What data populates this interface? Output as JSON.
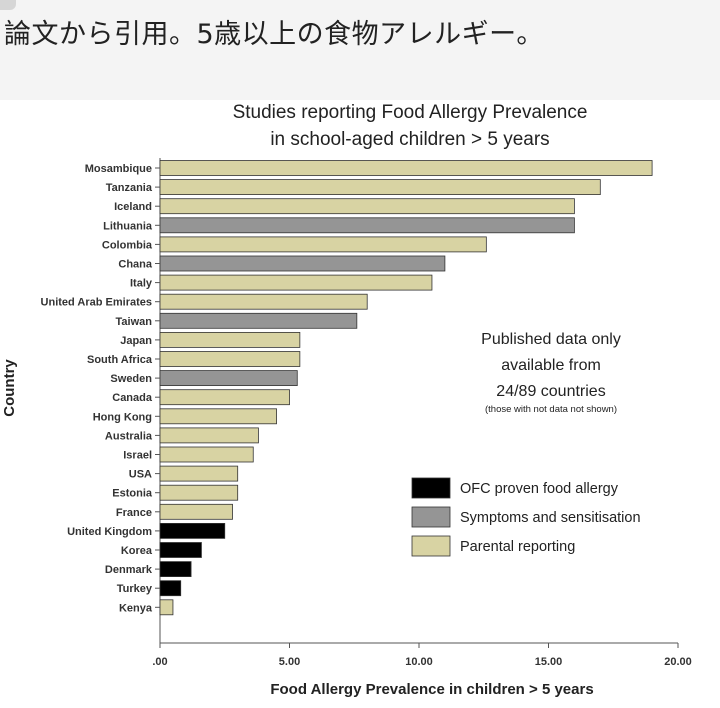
{
  "caption": "論文から引用。5歳以上の食物アレルギー。",
  "chart_data": {
    "type": "bar",
    "orientation": "horizontal",
    "title": "Studies reporting Food Allergy Prevalence in school-aged children > 5 years",
    "title_lines": [
      "Studies reporting Food Allergy Prevalence",
      "in school-aged children > 5 years"
    ],
    "xlabel": "Food Allergy Prevalence in children > 5 years",
    "ylabel": "Country",
    "xlim": [
      0,
      20
    ],
    "xticks": [
      0,
      5,
      10,
      15,
      20
    ],
    "xtick_labels": [
      ".00",
      "5.00",
      "10.00",
      "15.00",
      "20.00"
    ],
    "grid": false,
    "legend_position": "bottom-right",
    "colors": {
      "OFC proven food allergy": "#000000",
      "Symptoms and sensitisation": "#959595",
      "Parental reporting": "#d8d3a3"
    },
    "legend": [
      "OFC proven food allergy",
      "Symptoms and sensitisation",
      "Parental reporting"
    ],
    "annotation": {
      "lines": [
        "Published data only",
        "available from",
        "24/89 countries"
      ],
      "note": "(those with not data not shown)"
    },
    "bars": [
      {
        "country": "Mosambique",
        "value": 19.0,
        "category": "Parental reporting"
      },
      {
        "country": "Tanzania",
        "value": 17.0,
        "category": "Parental reporting"
      },
      {
        "country": "Iceland",
        "value": 16.0,
        "category": "Parental reporting"
      },
      {
        "country": "Lithuania",
        "value": 16.0,
        "category": "Symptoms and sensitisation"
      },
      {
        "country": "Colombia",
        "value": 12.6,
        "category": "Parental reporting"
      },
      {
        "country": "Chana",
        "value": 11.0,
        "category": "Symptoms and sensitisation"
      },
      {
        "country": "Italy",
        "value": 10.5,
        "category": "Parental reporting"
      },
      {
        "country": "United Arab Emirates",
        "value": 8.0,
        "category": "Parental reporting"
      },
      {
        "country": "Taiwan",
        "value": 7.6,
        "category": "Symptoms and sensitisation"
      },
      {
        "country": "Japan",
        "value": 5.4,
        "category": "Parental reporting"
      },
      {
        "country": "South Africa",
        "value": 5.4,
        "category": "Parental reporting"
      },
      {
        "country": "Sweden",
        "value": 5.3,
        "category": "Symptoms and sensitisation"
      },
      {
        "country": "Canada",
        "value": 5.0,
        "category": "Parental reporting"
      },
      {
        "country": "Hong Kong",
        "value": 4.5,
        "category": "Parental reporting"
      },
      {
        "country": "Australia",
        "value": 3.8,
        "category": "Parental reporting"
      },
      {
        "country": "Israel",
        "value": 3.6,
        "category": "Parental reporting"
      },
      {
        "country": "USA",
        "value": 3.0,
        "category": "Parental reporting"
      },
      {
        "country": "Estonia",
        "value": 3.0,
        "category": "Parental reporting"
      },
      {
        "country": "France",
        "value": 2.8,
        "category": "Parental reporting"
      },
      {
        "country": "United Kingdom",
        "value": 2.5,
        "category": "OFC proven food allergy"
      },
      {
        "country": "Korea",
        "value": 1.6,
        "category": "OFC proven food allergy"
      },
      {
        "country": "Denmark",
        "value": 1.2,
        "category": "OFC proven food allergy"
      },
      {
        "country": "Turkey",
        "value": 0.8,
        "category": "OFC proven food allergy"
      },
      {
        "country": "Kenya",
        "value": 0.5,
        "category": "Parental reporting"
      }
    ]
  }
}
